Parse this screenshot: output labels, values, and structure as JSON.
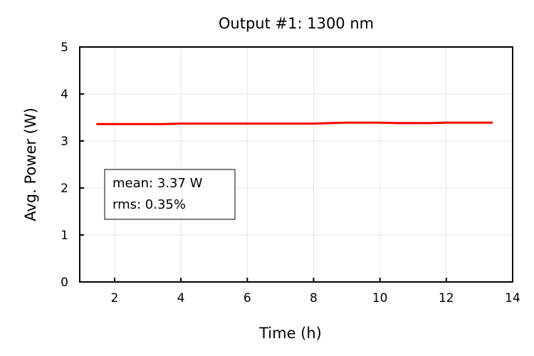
{
  "chart_data": {
    "type": "line",
    "title": "Output #1: 1300 nm",
    "xlabel": "Time (h)",
    "ylabel": "Avg. Power (W)",
    "xlim": [
      0.95,
      14
    ],
    "ylim": [
      0,
      5
    ],
    "xticks": [
      2,
      4,
      6,
      8,
      10,
      12,
      14
    ],
    "yticks": [
      0,
      1,
      2,
      3,
      4,
      5
    ],
    "grid": true,
    "series": [
      {
        "name": "Avg. Power",
        "color": "#ff0000",
        "x": [
          1.45,
          2.0,
          2.5,
          3.0,
          3.5,
          4.0,
          4.5,
          5.0,
          5.5,
          6.0,
          6.5,
          7.0,
          7.5,
          8.0,
          8.5,
          9.0,
          9.5,
          10.0,
          10.5,
          11.0,
          11.5,
          12.0,
          12.5,
          13.0,
          13.4
        ],
        "y": [
          3.36,
          3.36,
          3.36,
          3.36,
          3.36,
          3.37,
          3.37,
          3.37,
          3.37,
          3.37,
          3.37,
          3.37,
          3.37,
          3.37,
          3.38,
          3.39,
          3.39,
          3.39,
          3.38,
          3.38,
          3.38,
          3.39,
          3.39,
          3.39,
          3.39
        ]
      }
    ],
    "annotation": {
      "lines": [
        "mean: 3.37 W",
        "rms: 0.35%"
      ],
      "placement": "left-middle"
    }
  }
}
